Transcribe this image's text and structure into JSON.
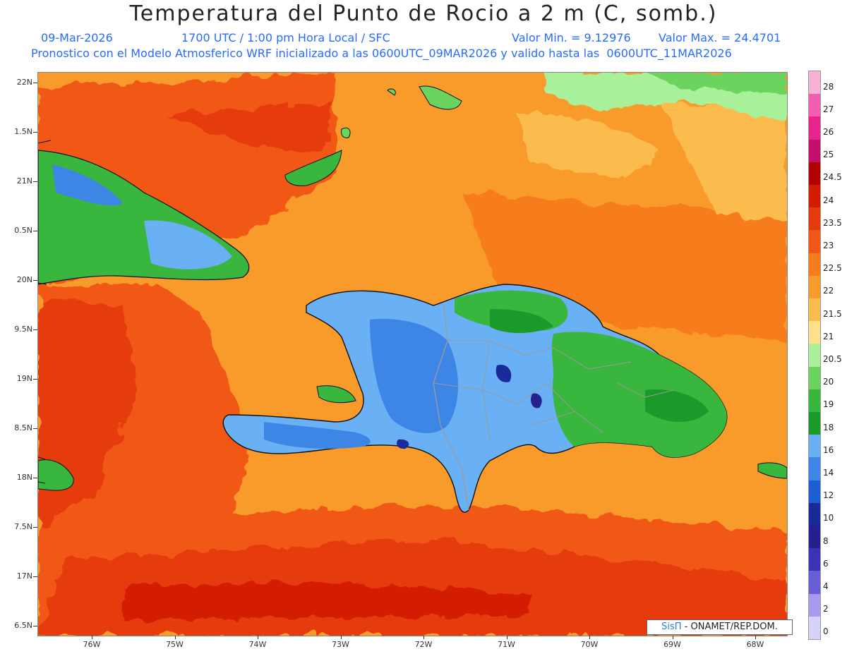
{
  "header": {
    "title": "Temperatura del Punto de Rocio a 2 m (C, somb.)",
    "date": "09-Mar-2026",
    "time": "1700 UTC / 1:00 pm Hora Local / SFC",
    "min_label": "Valor Min. = 9.12976",
    "max_label": "Valor Max. = 24.4701",
    "forecast_line": "Pronostico con el Modelo Atmosferico WRF inicializado a las 0600UTC_09MAR2026 y valido hasta las  0600UTC_11MAR2026"
  },
  "axes": {
    "lat_ticks": [
      "22N",
      "1.5N",
      "21N",
      "0.5N",
      "20N",
      "9.5N",
      "19N",
      "8.5N",
      "18N",
      "7.5N",
      "17N",
      "6.5N"
    ],
    "lon_ticks": [
      "76W",
      "75W",
      "74W",
      "73W",
      "72W",
      "71W",
      "70W",
      "69W",
      "68W"
    ]
  },
  "colorbar": {
    "labels": [
      "28",
      "27",
      "26",
      "25",
      "24.5",
      "24",
      "23.5",
      "23",
      "22.5",
      "22",
      "21.5",
      "21",
      "20.5",
      "20",
      "19",
      "18",
      "16",
      "14",
      "12",
      "10",
      "8",
      "6",
      "4",
      "2",
      "0"
    ],
    "colors": [
      "#f7b3d7",
      "#f25fb1",
      "#e8248f",
      "#c4106a",
      "#b00000",
      "#d31b00",
      "#e53a0e",
      "#f15818",
      "#f77d1c",
      "#f99b2a",
      "#fbbc4e",
      "#fde08a",
      "#a8f09a",
      "#6ad45e",
      "#39b63d",
      "#1a9a2a",
      "#6ab0f5",
      "#3d86e6",
      "#1d5ed0",
      "#1a2a9a",
      "#24208f",
      "#3b33b5",
      "#6a5ed6",
      "#a999ef",
      "#d6d3fa"
    ]
  },
  "credit": {
    "brand": "SisΠ",
    "text": "- ONAMET/REP.DOM."
  }
}
